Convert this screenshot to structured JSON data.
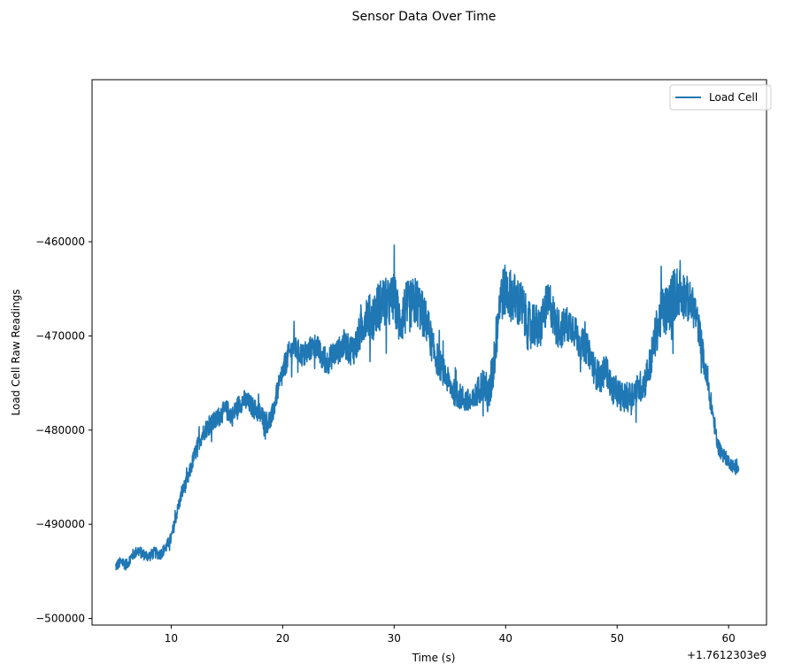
{
  "chart_data": {
    "type": "line",
    "title": "Sensor Data Over Time",
    "xlabel": "Time (s)",
    "ylabel": "Load Cell Raw Readings",
    "x_offset_label": "+1.7612303e9",
    "xlim": [
      2.9,
      63.4
    ],
    "ylim": [
      -500700,
      -442800
    ],
    "xticks": [
      10,
      20,
      30,
      40,
      50,
      60
    ],
    "xtick_labels": [
      "10",
      "20",
      "30",
      "40",
      "50",
      "60"
    ],
    "yticks": [
      -500000,
      -490000,
      -480000,
      -470000,
      -460000
    ],
    "ytick_labels": [
      "−500000",
      "−490000",
      "−480000",
      "−470000",
      "−460000"
    ],
    "grid": false,
    "legend_position": "upper right",
    "series": [
      {
        "name": "Load Cell",
        "color": "#1f77b4",
        "x": [
          5.0,
          5.5,
          6.0,
          6.5,
          7.0,
          7.5,
          8.0,
          8.5,
          9.0,
          9.5,
          10.0,
          10.5,
          11.0,
          11.5,
          12.0,
          12.5,
          13.0,
          13.5,
          14.0,
          14.5,
          15.0,
          15.5,
          16.0,
          16.5,
          17.0,
          17.5,
          18.0,
          18.5,
          19.0,
          19.5,
          20.0,
          20.5,
          21.0,
          21.5,
          22.0,
          22.5,
          23.0,
          23.5,
          24.0,
          24.5,
          25.0,
          25.5,
          26.0,
          26.5,
          27.0,
          27.5,
          28.0,
          28.5,
          29.0,
          29.5,
          30.0,
          30.5,
          31.0,
          31.5,
          32.0,
          32.5,
          33.0,
          33.5,
          34.0,
          34.5,
          35.0,
          35.5,
          36.0,
          36.5,
          37.0,
          37.5,
          38.0,
          38.5,
          39.0,
          39.5,
          40.0,
          40.5,
          41.0,
          41.5,
          42.0,
          42.5,
          43.0,
          43.5,
          44.0,
          44.5,
          45.0,
          45.5,
          46.0,
          46.5,
          47.0,
          47.5,
          48.0,
          48.5,
          49.0,
          49.5,
          50.0,
          50.5,
          51.0,
          51.5,
          52.0,
          52.5,
          53.0,
          53.5,
          54.0,
          54.5,
          55.0,
          55.5,
          56.0,
          56.5,
          57.0,
          57.5,
          58.0,
          58.5,
          59.0,
          59.5,
          60.0,
          60.5,
          60.9
        ],
        "y": [
          -494500,
          -494000,
          -494300,
          -493300,
          -492800,
          -493200,
          -493400,
          -493000,
          -493200,
          -492500,
          -491500,
          -488800,
          -486500,
          -485200,
          -483000,
          -481200,
          -480000,
          -479400,
          -479000,
          -478200,
          -477900,
          -478500,
          -477400,
          -476800,
          -477200,
          -477800,
          -478300,
          -479200,
          -478800,
          -476000,
          -474000,
          -472000,
          -471200,
          -471800,
          -472200,
          -471300,
          -471000,
          -472300,
          -472800,
          -472000,
          -471600,
          -470800,
          -471500,
          -471200,
          -469500,
          -467600,
          -468200,
          -467000,
          -466400,
          -466700,
          -465800,
          -468600,
          -467200,
          -466800,
          -466200,
          -467600,
          -468800,
          -471500,
          -472800,
          -474000,
          -475200,
          -476200,
          -476500,
          -476900,
          -477200,
          -475800,
          -475000,
          -476600,
          -472200,
          -465800,
          -465200,
          -465700,
          -466300,
          -467000,
          -469000,
          -468500,
          -469600,
          -467200,
          -466500,
          -468900,
          -469300,
          -468800,
          -468800,
          -470500,
          -471000,
          -471700,
          -473800,
          -474500,
          -473400,
          -475600,
          -475900,
          -476600,
          -476500,
          -476000,
          -475500,
          -474800,
          -472800,
          -469600,
          -467500,
          -467300,
          -465800,
          -465200,
          -465600,
          -466400,
          -467400,
          -470300,
          -474500,
          -477600,
          -481600,
          -482600,
          -483300,
          -484000,
          -484100
        ],
        "noise": [
          600,
          600,
          600,
          600,
          600,
          600,
          600,
          600,
          600,
          600,
          700,
          700,
          800,
          800,
          900,
          900,
          1000,
          1000,
          1100,
          1100,
          1100,
          1100,
          1100,
          1100,
          1100,
          1100,
          1200,
          1200,
          1200,
          1200,
          1300,
          1300,
          1300,
          1300,
          1300,
          1300,
          1400,
          1400,
          1400,
          1400,
          1400,
          1500,
          1600,
          1800,
          2100,
          2300,
          2500,
          2700,
          2800,
          2700,
          2600,
          2700,
          2900,
          2800,
          2700,
          2500,
          2200,
          1900,
          1700,
          1500,
          1400,
          1400,
          1400,
          1400,
          1400,
          1500,
          1800,
          2300,
          2600,
          2800,
          2800,
          2800,
          2800,
          2700,
          2600,
          2500,
          2400,
          2300,
          2300,
          2200,
          2100,
          2000,
          1900,
          1800,
          1700,
          1700,
          1700,
          1700,
          1600,
          1600,
          1600,
          1600,
          1600,
          1600,
          1700,
          1800,
          2000,
          2300,
          2600,
          2800,
          2900,
          2800,
          2600,
          2300,
          2000,
          1700,
          1400,
          1100,
          900,
          800,
          700,
          700,
          700
        ]
      }
    ]
  }
}
